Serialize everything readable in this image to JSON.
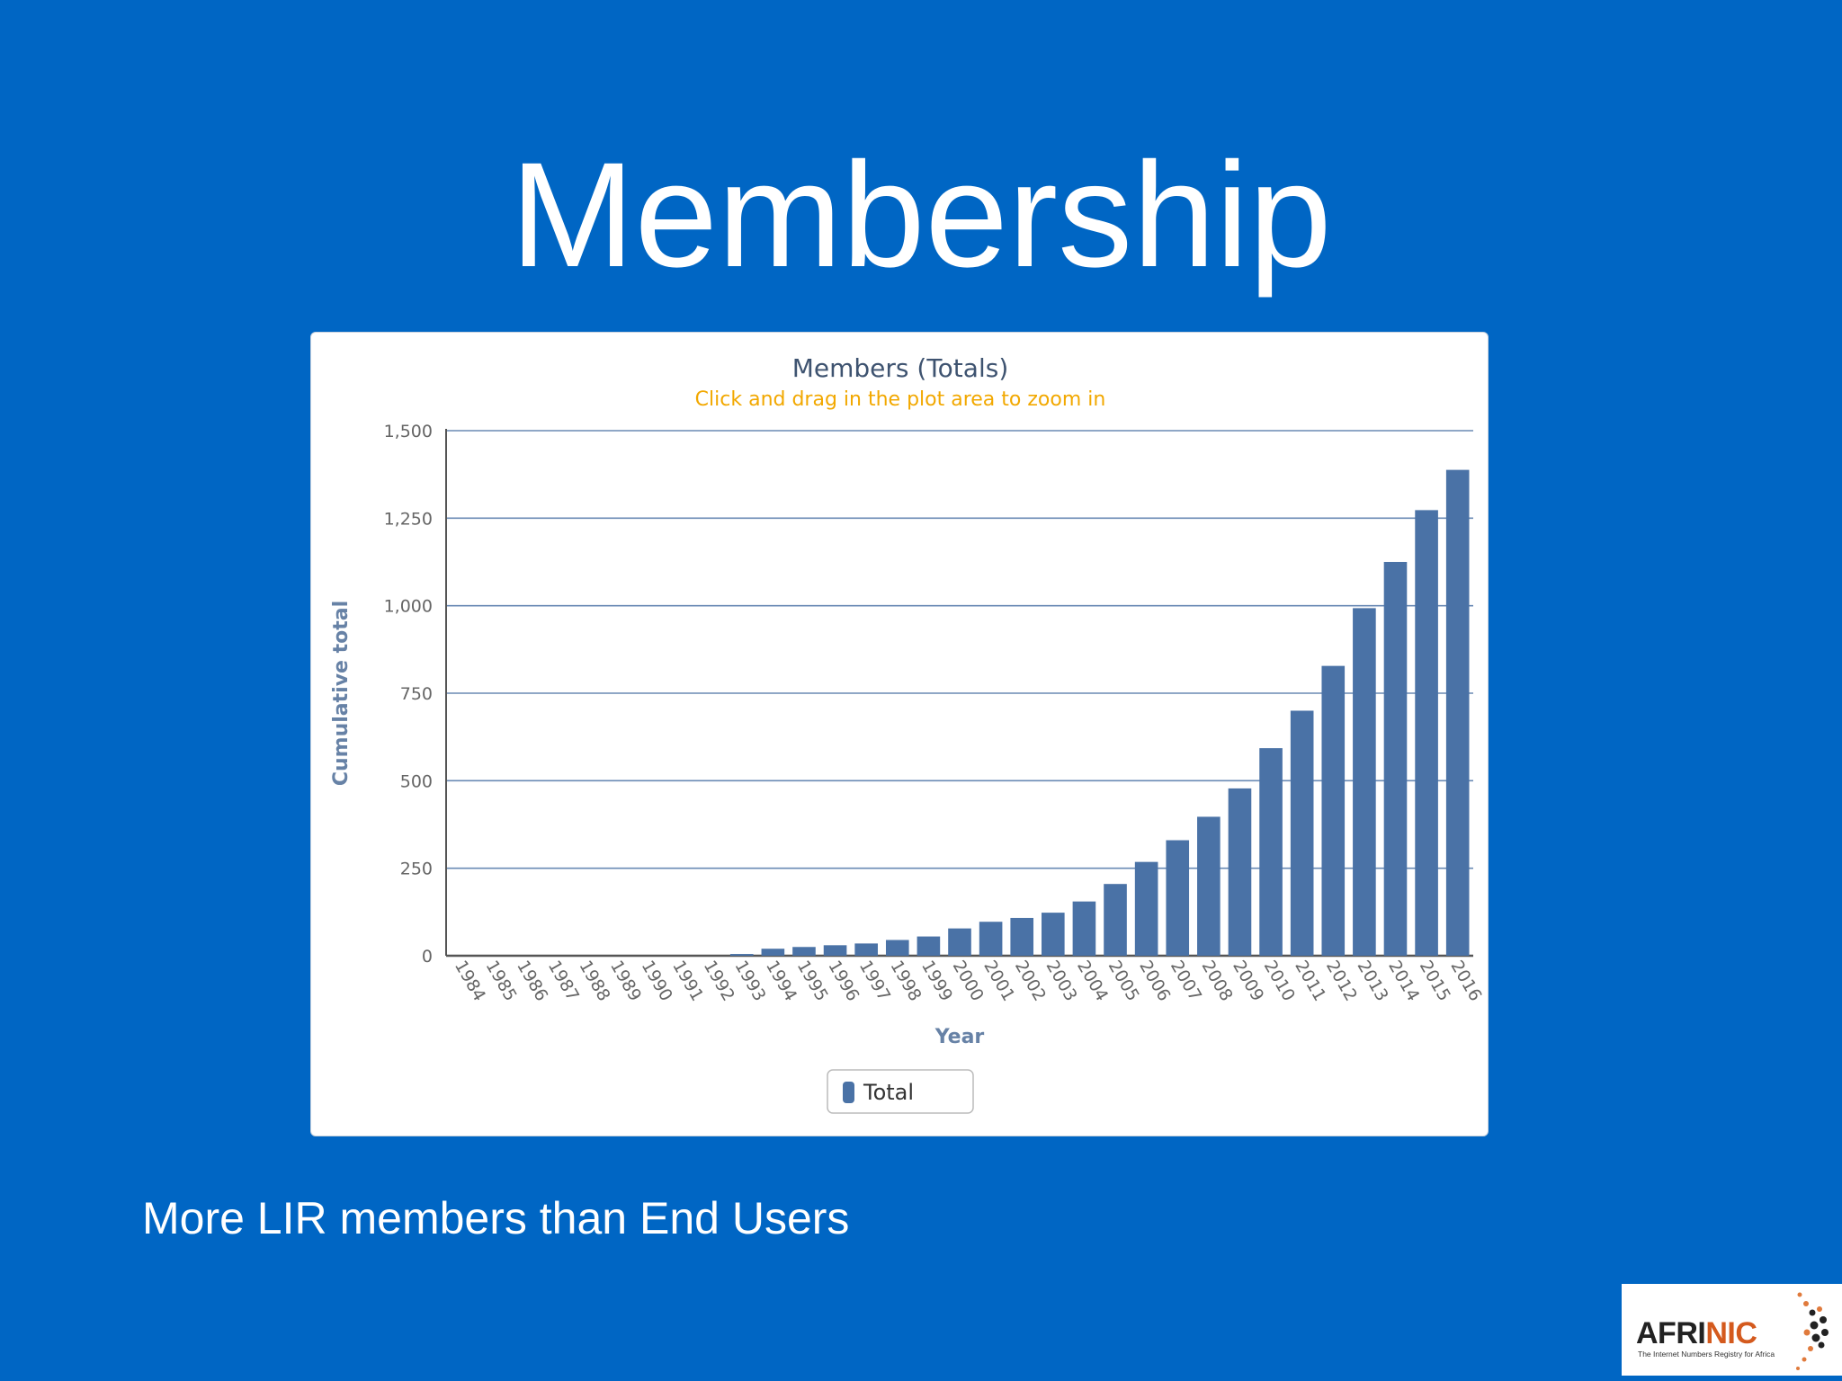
{
  "slide": {
    "title": "Membership",
    "caption": "More LIR members than End Users"
  },
  "chart_data": {
    "type": "bar",
    "title": "Members (Totals)",
    "subtitle": "Click and drag in the plot area to zoom in",
    "xlabel": "Year",
    "ylabel": "Cumulative total",
    "ylim": [
      0,
      1500
    ],
    "yticks": [
      0,
      250,
      500,
      750,
      1000,
      1250,
      1500
    ],
    "ytick_labels": [
      "0",
      "250",
      "500",
      "750",
      "1,000",
      "1,250",
      "1,500"
    ],
    "grid": true,
    "legend_position": "bottom-center",
    "categories": [
      "1984",
      "1985",
      "1986",
      "1987",
      "1988",
      "1989",
      "1990",
      "1991",
      "1992",
      "1993",
      "1994",
      "1995",
      "1996",
      "1997",
      "1998",
      "1999",
      "2000",
      "2001",
      "2002",
      "2003",
      "2004",
      "2005",
      "2006",
      "2007",
      "2008",
      "2009",
      "2010",
      "2011",
      "2012",
      "2013",
      "2014",
      "2015",
      "2016"
    ],
    "series": [
      {
        "name": "Total",
        "color": "#4a72a6",
        "values": [
          0,
          0,
          0,
          0,
          0,
          0,
          0,
          0,
          0,
          5,
          20,
          25,
          30,
          35,
          45,
          55,
          78,
          97,
          108,
          123,
          155,
          205,
          268,
          330,
          397,
          478,
          593,
          700,
          828,
          993,
          1125,
          1273,
          1388
        ]
      }
    ],
    "colors": {
      "title": "#3e5370",
      "subtitle": "#f2a800",
      "axis_title": "#6782a6",
      "tick_label": "#666666",
      "grid": "#6a8ab4",
      "bar": "#4a72a6"
    }
  },
  "logo": {
    "text_black": "AFRI",
    "text_orange": "NIC",
    "tagline": "The Internet Numbers Registry for Africa"
  }
}
